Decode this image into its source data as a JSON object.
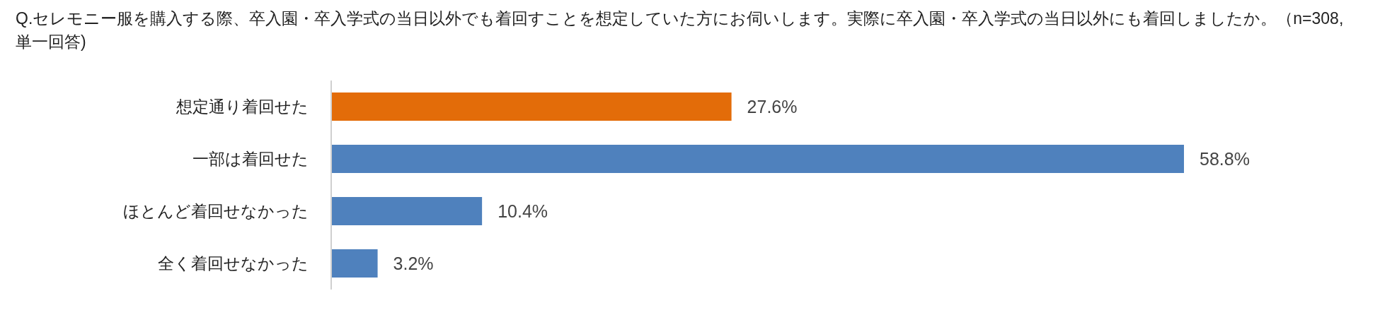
{
  "chart_data": {
    "type": "bar",
    "orientation": "horizontal",
    "title": "Q.セレモニー服を購入する際、卒入園・卒入学式の当日以外でも着回すことを想定していた方にお伺いします。実際に卒入園・卒入学式の当日以外にも着回しましたか。（n=308,単一回答)",
    "categories": [
      "想定通り着回せた",
      "一部は着回せた",
      "ほとんど着回せなかった",
      "全く着回せなかった"
    ],
    "values": [
      27.6,
      58.8,
      10.4,
      3.2
    ],
    "colors": [
      "#e36c09",
      "#4f81bd",
      "#4f81bd",
      "#4f81bd"
    ],
    "value_labels": [
      "27.6%",
      "58.8%",
      "10.4%",
      "3.2%"
    ]
  }
}
